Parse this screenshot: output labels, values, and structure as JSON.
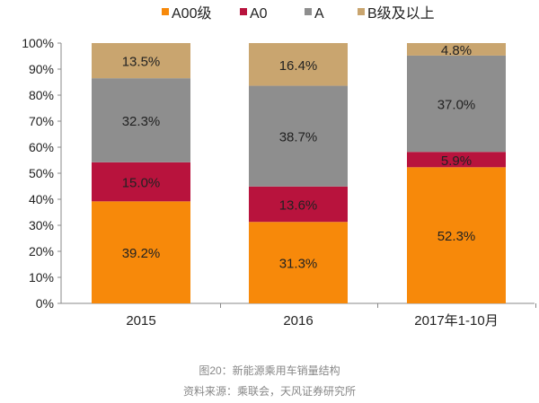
{
  "chart_data": {
    "type": "bar",
    "stacked": true,
    "categories": [
      "2015",
      "2016",
      "2017年1-10月"
    ],
    "series": [
      {
        "name": "A00级",
        "values": [
          39.2,
          31.3,
          52.3
        ],
        "color": "#F7890A"
      },
      {
        "name": "A0",
        "values": [
          15.0,
          13.6,
          5.9
        ],
        "color": "#B8133D"
      },
      {
        "name": "A",
        "values": [
          32.3,
          38.7,
          37.0
        ],
        "color": "#8E8E8E"
      },
      {
        "name": "B级及以上",
        "values": [
          13.5,
          16.4,
          4.8
        ],
        "color": "#C9A56F"
      }
    ],
    "ylim": [
      0,
      100
    ],
    "yticks": [
      "0%",
      "10%",
      "20%",
      "30%",
      "40%",
      "50%",
      "60%",
      "70%",
      "80%",
      "90%",
      "100%"
    ],
    "legend_position": "top",
    "grid": false
  },
  "caption": {
    "title": "图20：新能源乘用车销量结构",
    "source": "资料来源：乘联会，天风证券研究所"
  }
}
